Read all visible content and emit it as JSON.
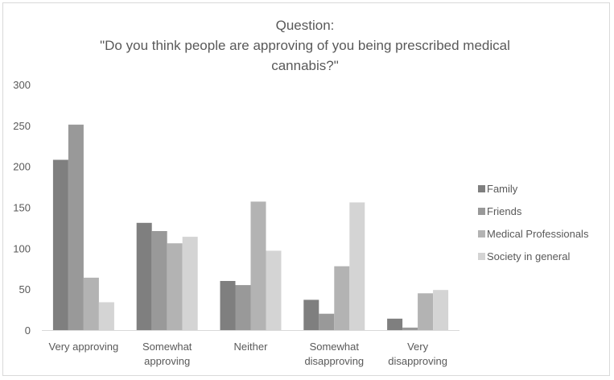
{
  "chart_data": {
    "type": "bar",
    "title": [
      "Question:",
      "\"Do you think people are approving of you being prescribed medical",
      "cannabis?\""
    ],
    "categories": [
      [
        "Very approving"
      ],
      [
        "Somewhat",
        "approving"
      ],
      [
        "Neither"
      ],
      [
        "Somewhat",
        "disapproving"
      ],
      [
        "Very",
        "disapproving"
      ]
    ],
    "series": [
      {
        "name": "Family",
        "values": [
          208,
          131,
          60,
          37,
          14
        ],
        "color": "#7f7f7f"
      },
      {
        "name": "Friends",
        "values": [
          251,
          121,
          55,
          20,
          3
        ],
        "color": "#999999"
      },
      {
        "name": "Medical Professionals",
        "values": [
          64,
          106,
          157,
          78,
          45
        ],
        "color": "#b3b3b3"
      },
      {
        "name": "Society in general",
        "values": [
          34,
          114,
          97,
          156,
          49
        ],
        "color": "#d4d4d4"
      }
    ],
    "yticks": [
      0,
      50,
      100,
      150,
      200,
      250,
      300
    ],
    "ylim": [
      0,
      300
    ],
    "xlabel": "",
    "ylabel": "",
    "legend": "right",
    "grid": false
  }
}
